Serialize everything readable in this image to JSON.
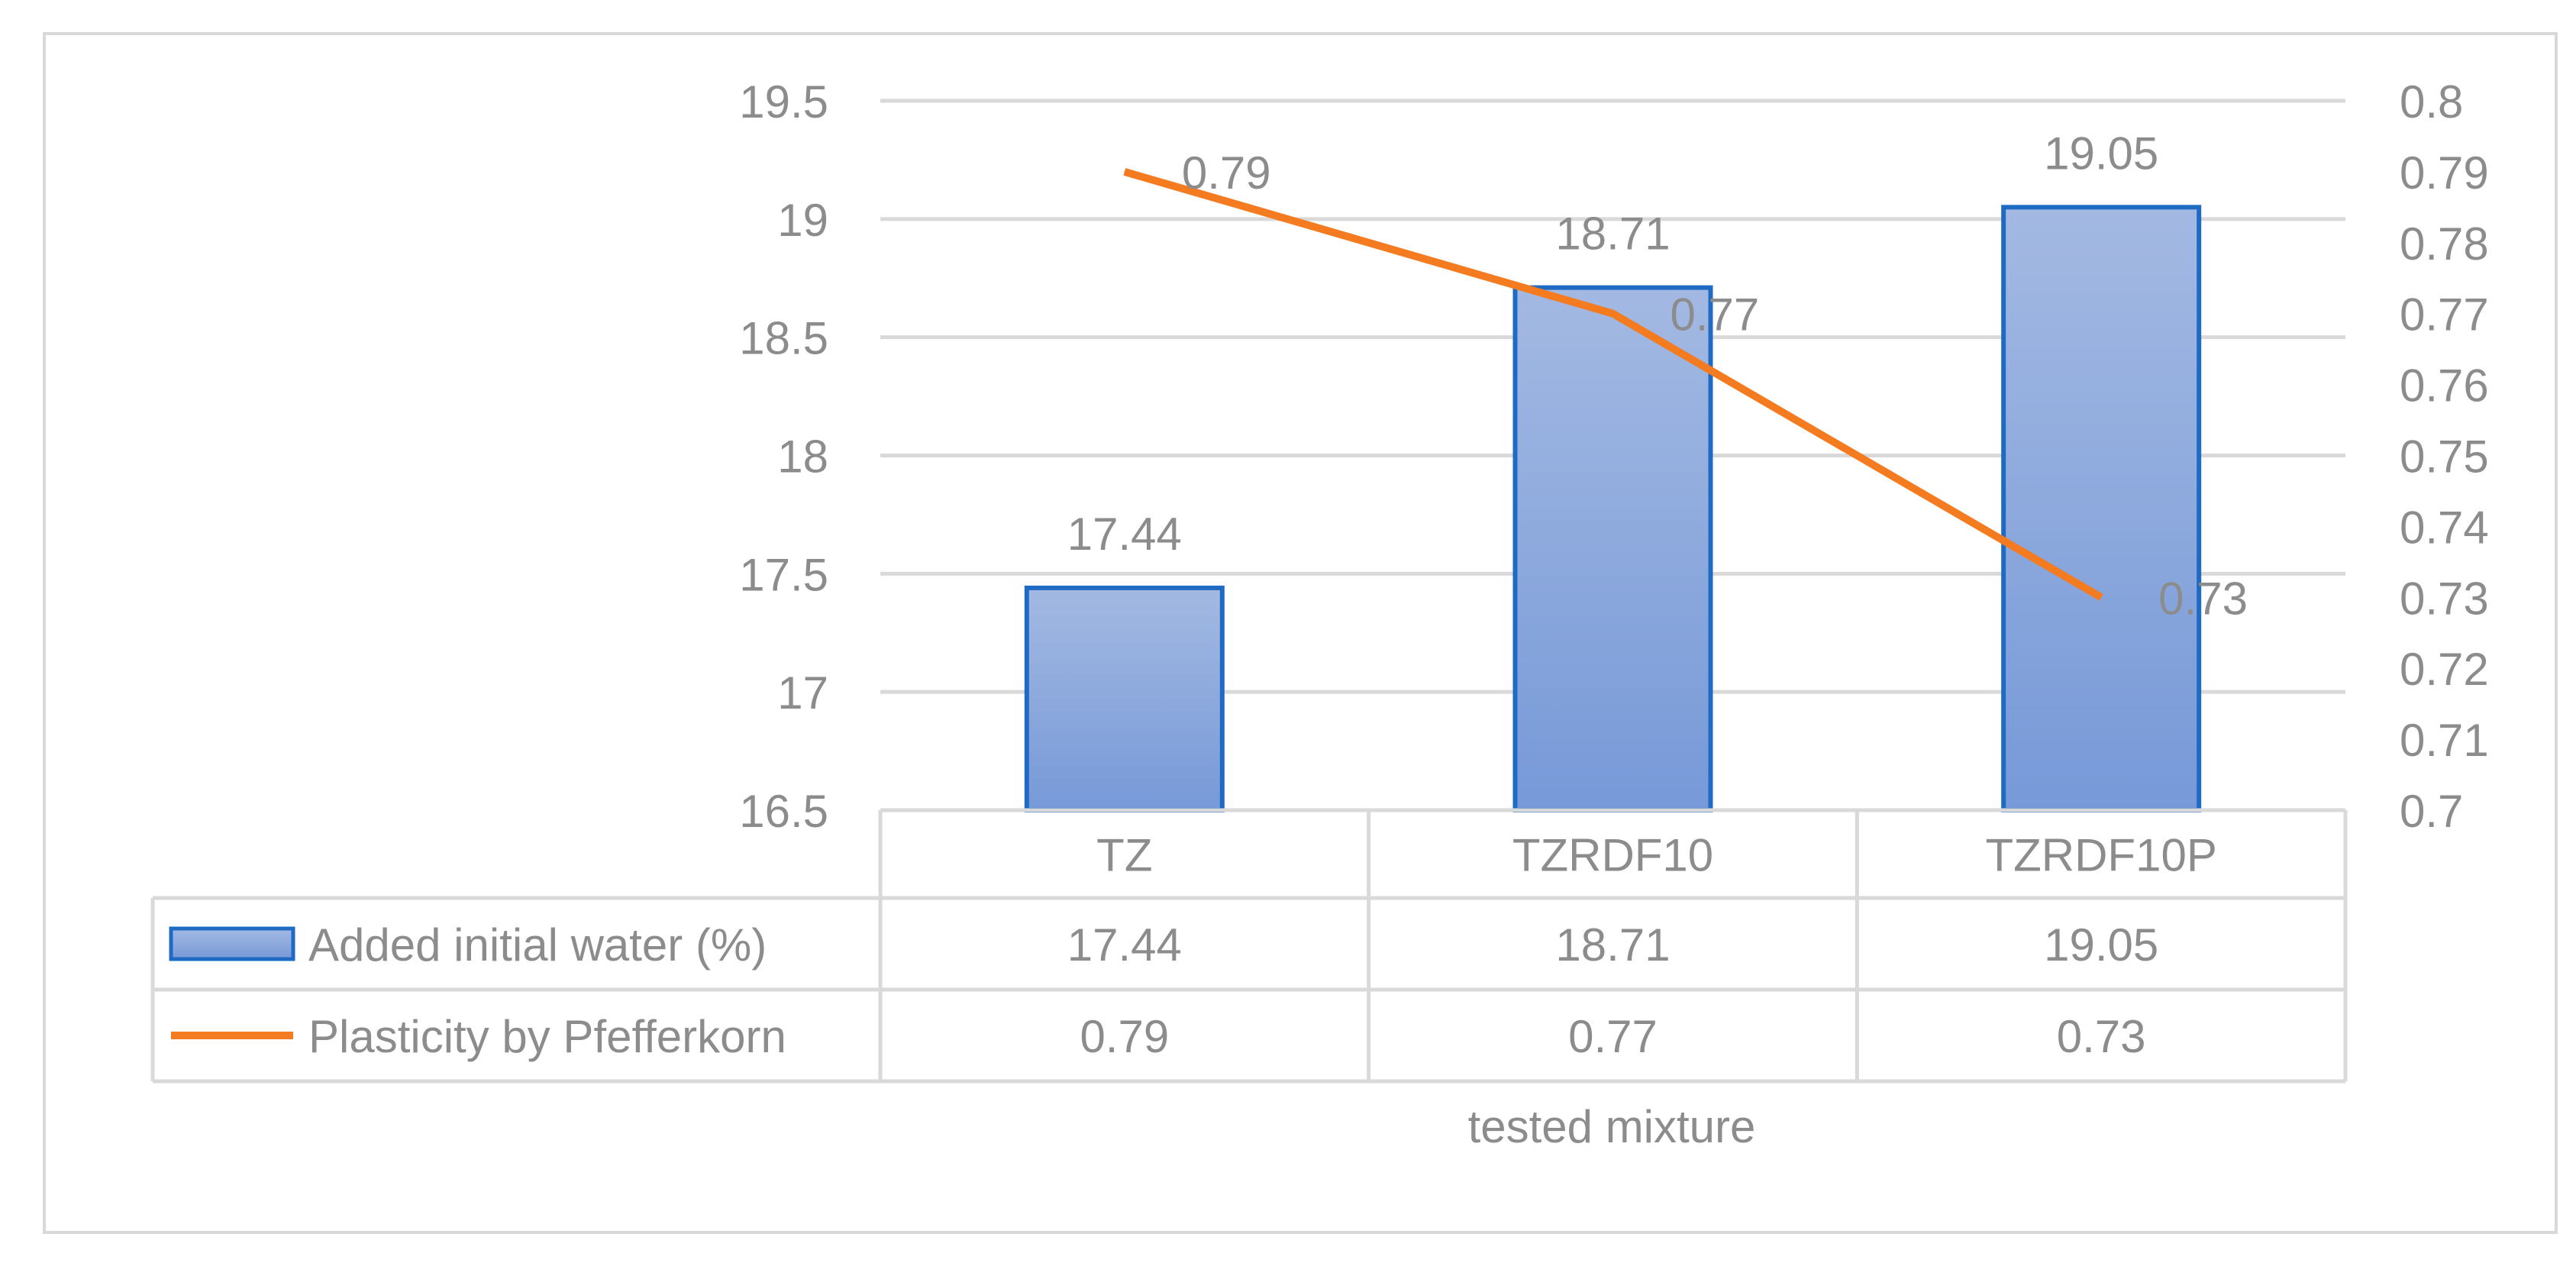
{
  "chart_data": {
    "type": "bar",
    "categories": [
      "TZ",
      "TZRDF10",
      "TZRDF10P"
    ],
    "series": [
      {
        "name": "Added initial water (%)",
        "type": "bar",
        "axis": "left",
        "values": [
          17.44,
          18.71,
          19.05
        ],
        "value_labels": [
          "17.44",
          "18.71",
          "19.05"
        ],
        "color": "#7da0d8",
        "border_color": "#1f6bc4"
      },
      {
        "name": "Plasticity by Pfefferkorn",
        "type": "line",
        "axis": "right",
        "values": [
          0.79,
          0.77,
          0.73
        ],
        "value_labels": [
          "0.79",
          "0.77",
          "0.73"
        ],
        "color": "#f47b20"
      }
    ],
    "y_left": {
      "min": 16.5,
      "max": 19.5,
      "ticks": [
        16.5,
        17,
        17.5,
        18,
        18.5,
        19,
        19.5
      ],
      "tick_labels": [
        "16.5",
        "17",
        "17.5",
        "18",
        "18.5",
        "19",
        "19.5"
      ]
    },
    "y_right": {
      "min": 0.7,
      "max": 0.8,
      "ticks": [
        0.7,
        0.71,
        0.72,
        0.73,
        0.74,
        0.75,
        0.76,
        0.77,
        0.78,
        0.79,
        0.8
      ],
      "tick_labels": [
        "0.7",
        "0.71",
        "0.72",
        "0.73",
        "0.74",
        "0.75",
        "0.76",
        "0.77",
        "0.78",
        "0.79",
        "0.8"
      ]
    },
    "xlabel": "tested mixture",
    "grid": true,
    "data_table": true,
    "colors": {
      "grid": "#d9d9d9",
      "text": "#8c8c8c",
      "frame": "#d9d9d9"
    }
  }
}
